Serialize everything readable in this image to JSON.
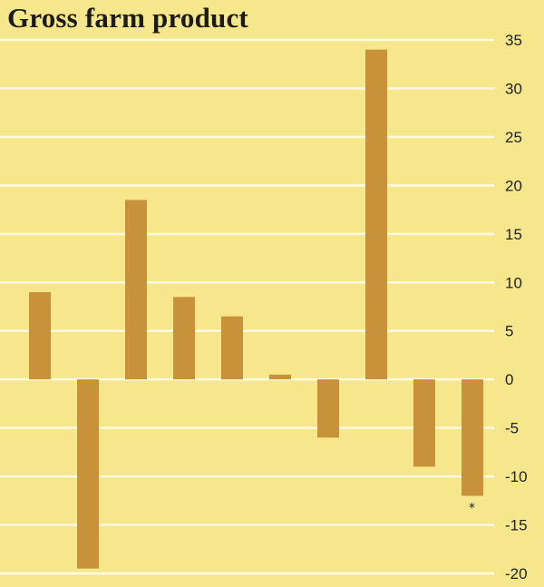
{
  "chart_data": {
    "type": "bar",
    "title": "Gross farm product",
    "xlabel": "",
    "ylabel": "",
    "ylim": [
      -20,
      35
    ],
    "yticks": [
      35,
      30,
      25,
      20,
      15,
      10,
      5,
      0,
      -5,
      -10,
      -15,
      -20
    ],
    "ytick_labels": [
      "35",
      "30",
      "25",
      "20",
      "15",
      "10",
      "5",
      "0",
      "-5",
      "-10",
      "-15",
      "-20"
    ],
    "y_axis_side": "right",
    "grid": true,
    "categories": [
      "",
      "",
      "",
      "",
      "",
      "",
      "",
      "",
      "",
      ""
    ],
    "values": [
      9,
      -19.5,
      18.5,
      8.5,
      6.5,
      0.5,
      -6,
      34,
      -9,
      -12
    ],
    "annotations": [
      {
        "bar_index": 9,
        "text": "*"
      }
    ]
  },
  "colors": {
    "background": "#f6e78c",
    "gridline": "#fffbe2",
    "bar": "#c8923a",
    "text": "#1c1c16"
  }
}
